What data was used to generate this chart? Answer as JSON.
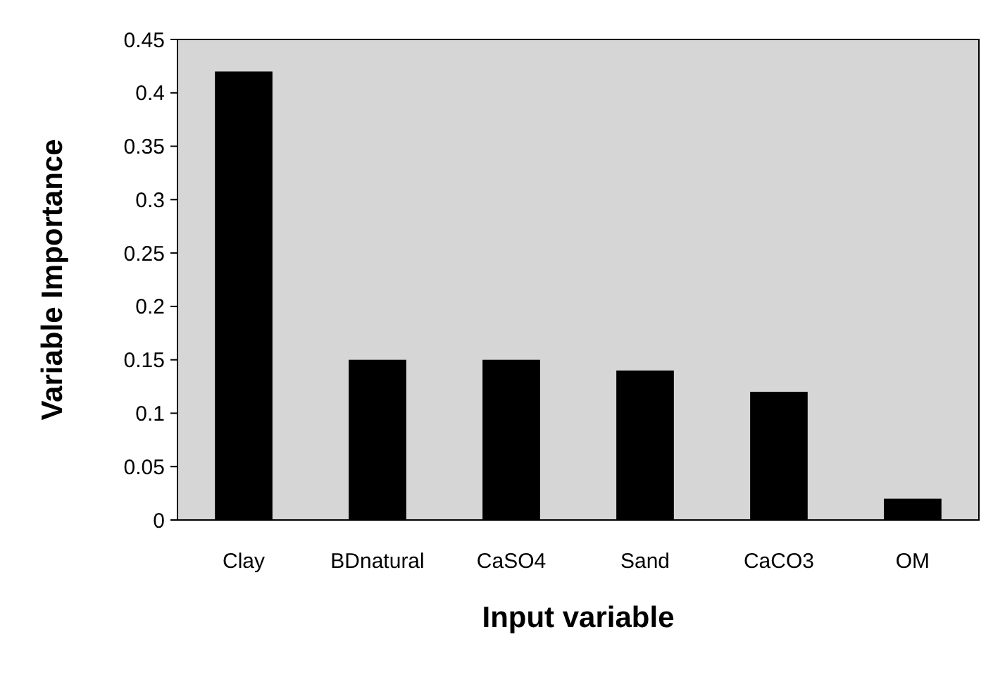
{
  "chart_data": {
    "type": "bar",
    "xlabel": "Input variable",
    "ylabel": "Variable Importance",
    "categories": [
      "Clay",
      "BDnatural",
      "CaSO4",
      "Sand",
      "CaCO3",
      "OM"
    ],
    "values": [
      0.42,
      0.15,
      0.15,
      0.14,
      0.12,
      0.02
    ],
    "color": "#000000",
    "ylim": [
      0,
      0.45
    ],
    "yticks": [
      0,
      0.05,
      0.1,
      0.15,
      0.2,
      0.25,
      0.3,
      0.35,
      0.4,
      0.45
    ],
    "grid": false
  }
}
